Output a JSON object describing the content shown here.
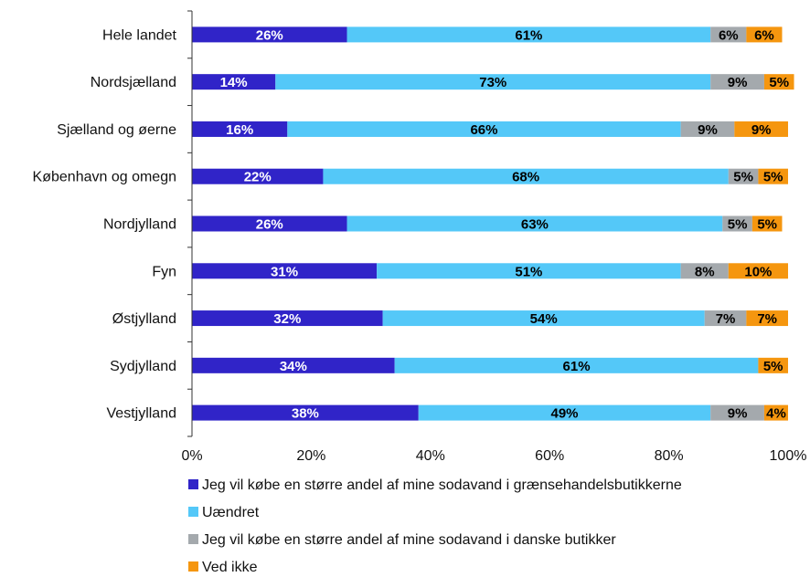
{
  "chart_data": {
    "type": "bar",
    "orientation": "horizontal",
    "stacked": "percent",
    "categories": [
      "Hele landet",
      "Nordsjælland",
      "Sjælland og øerne",
      "København og omegn",
      "Nordjylland",
      "Fyn",
      "Østjylland",
      "Sydjylland",
      "Vestjylland"
    ],
    "series": [
      {
        "name": "Jeg vil købe en større andel af mine sodavand i grænsehandelsbutikkerne",
        "color": "#3024c8",
        "label_color": "#ffffff",
        "values": [
          26,
          14,
          16,
          22,
          26,
          31,
          32,
          34,
          38
        ]
      },
      {
        "name": "Uændret",
        "color": "#54c8f8",
        "label_color": "#000000",
        "values": [
          61,
          73,
          66,
          68,
          63,
          51,
          54,
          61,
          49
        ]
      },
      {
        "name": "Jeg vil købe en større andel af mine sodavand i danske butikker",
        "color": "#a4a9ad",
        "label_color": "#000000",
        "values": [
          6,
          9,
          9,
          5,
          5,
          8,
          7,
          0,
          9
        ]
      },
      {
        "name": "Ved ikke",
        "color": "#f5960f",
        "label_color": "#000000",
        "values": [
          6,
          5,
          9,
          5,
          5,
          10,
          7,
          5,
          4
        ]
      }
    ],
    "x_ticks": [
      "0%",
      "20%",
      "40%",
      "60%",
      "80%",
      "100%"
    ],
    "xlim": [
      0,
      100
    ],
    "grid": false,
    "legend_position": "bottom"
  }
}
